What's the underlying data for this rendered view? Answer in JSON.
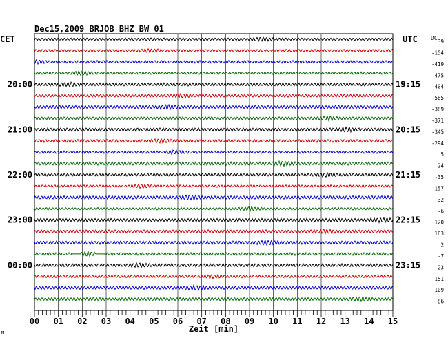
{
  "chart_data": {
    "type": "line",
    "title": "Dec15,2009   BRJOB BHZ BW 01",
    "left_timezone": "CET",
    "right_timezone": "UTC",
    "dc_header": "DC",
    "xlabel": "Zeit [min]",
    "xlim": [
      0,
      15
    ],
    "x_ticks": [
      "00",
      "01",
      "02",
      "03",
      "04",
      "05",
      "06",
      "07",
      "08",
      "09",
      "10",
      "11",
      "12",
      "13",
      "14",
      "15"
    ],
    "left_hour_labels": [
      "20:00",
      "21:00",
      "22:00",
      "23:00",
      "00:00"
    ],
    "right_hour_labels": [
      "19:15",
      "20:15",
      "21:15",
      "22:15",
      "23:15"
    ],
    "trace_colors": [
      "#000000",
      "#cc0000",
      "#0000cc",
      "#006600"
    ],
    "dc_offsets": [
      "39",
      "-154",
      "-419",
      "-475",
      "-404",
      "-585",
      "-389",
      "-371",
      "-345",
      "-294",
      "5",
      "24",
      "-35",
      "-157",
      "32",
      "-6",
      "120",
      "163",
      "2",
      "-7",
      "23",
      "151",
      "109",
      "86"
    ],
    "grid": true
  },
  "footer_mark": "M"
}
